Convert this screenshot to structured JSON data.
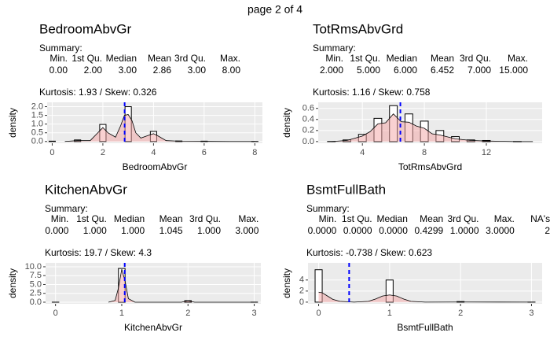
{
  "page_title": "page 2 of 4",
  "chart_data": [
    {
      "type": "histogram",
      "title": "BedroomAbvGr",
      "summary_title": "Summary:",
      "summary_labels": [
        "Min.",
        "1st Qu.",
        "Median",
        "Mean",
        "3rd Qu.",
        "Max."
      ],
      "summary_values": [
        "0.00",
        "2.00",
        "3.00",
        "2.86",
        "3.00",
        "8.00"
      ],
      "annotation": "Kurtosis: 1.93  / Skew: 0.326",
      "xlabel": "BedroomAbvGr",
      "ylabel": "density",
      "bins": [
        -0.125,
        0.125,
        0.375,
        0.625,
        0.875,
        1.125,
        1.375,
        1.625,
        1.875,
        2.125,
        2.375,
        2.625,
        2.875,
        3.125,
        3.375,
        3.625,
        3.875,
        4.125,
        4.375,
        4.625,
        4.875,
        5.125,
        5.375,
        5.625,
        5.875,
        6.125,
        6.375,
        6.625,
        6.875,
        7.125,
        7.375,
        7.625,
        7.875,
        8.125
      ],
      "values": [
        0.02,
        0,
        0,
        0,
        0.09,
        0,
        0,
        0,
        0.98,
        0,
        0,
        0,
        2.0,
        0,
        0,
        0,
        0.58,
        0,
        0,
        0,
        0.03,
        0,
        0,
        0,
        0.02,
        0,
        0,
        0,
        0,
        0,
        0,
        0,
        0.003
      ],
      "density": {
        "x": [
          0.5,
          1,
          1.5,
          1.8,
          2,
          2.2,
          2.5,
          2.7,
          2.85,
          3,
          3.15,
          3.3,
          3.5,
          3.8,
          4,
          4.2,
          4.5,
          5,
          6,
          7,
          8
        ],
        "values": [
          0,
          0.05,
          0.05,
          0.5,
          0.8,
          0.5,
          0.25,
          0.9,
          1.5,
          1.55,
          1.2,
          0.5,
          0.2,
          0.35,
          0.45,
          0.3,
          0.05,
          0.02,
          0.01,
          0,
          0
        ]
      },
      "mean": 2.86,
      "color": "#f4a3a3",
      "bar_fill": "#ffffff",
      "bar_edge": "#000000",
      "mean_color": "#0000ff",
      "xlim": [
        -0.2,
        8.3
      ],
      "xticks": [
        0,
        2,
        4,
        6,
        8
      ],
      "ylim": [
        -0.1,
        2.25
      ],
      "yticks": [
        {
          "value": 0,
          "label": "0.0"
        },
        0.5,
        {
          "value": 1,
          "label": "1.0"
        },
        1.5,
        {
          "value": 2,
          "label": "2.0"
        }
      ],
      "grid": true
    },
    {
      "type": "histogram",
      "title": "TotRmsAbvGrd",
      "summary_title": "Summary:",
      "summary_labels": [
        "Min.",
        "1st Qu.",
        "Median",
        "Mean",
        "3rd Qu.",
        "Max."
      ],
      "summary_values": [
        "2.000",
        "5.000",
        "6.000",
        "6.452",
        "7.000",
        "15.000"
      ],
      "annotation": "Kurtosis: 1.16  / Skew: 0.758",
      "xlabel": "TotRmsAbvGrd",
      "ylabel": "density",
      "bins": [
        1.75,
        2.25,
        2.75,
        3.25,
        3.75,
        4.25,
        4.75,
        5.25,
        5.75,
        6.25,
        6.75,
        7.25,
        7.75,
        8.25,
        8.75,
        9.25,
        9.75,
        10.25,
        10.75,
        11.25,
        11.75,
        12.25,
        12.75,
        13.25,
        13.75,
        14.25,
        14.75,
        15.25
      ],
      "values": [
        0.002,
        0,
        0.03,
        0,
        0.13,
        0,
        0.42,
        0,
        0.65,
        0,
        0.5,
        0,
        0.37,
        0,
        0.2,
        0,
        0.09,
        0,
        0.03,
        0,
        0.02,
        0,
        0,
        0,
        0.002,
        0,
        0
      ],
      "density": {
        "x": [
          2,
          3,
          4,
          4.5,
          5,
          5.5,
          6,
          6.5,
          7,
          7.5,
          8,
          8.5,
          9,
          10,
          11,
          12,
          14,
          15
        ],
        "values": [
          0,
          0.02,
          0.1,
          0.18,
          0.32,
          0.34,
          0.5,
          0.36,
          0.35,
          0.28,
          0.24,
          0.14,
          0.12,
          0.05,
          0.02,
          0.01,
          0,
          0
        ]
      },
      "mean": 6.452,
      "color": "#f4a3a3",
      "bar_fill": "#ffffff",
      "bar_edge": "#000000",
      "mean_color": "#0000ff",
      "xlim": [
        1.15,
        15.6
      ],
      "xticks": [
        4,
        8,
        12
      ],
      "ylim": [
        -0.03,
        0.71
      ],
      "yticks": [
        {
          "value": 0,
          "label": "0.0"
        },
        0.2,
        0.4,
        0.6
      ],
      "grid": true
    },
    {
      "type": "histogram",
      "title": "KitchenAbvGr",
      "summary_title": "Summary:",
      "summary_labels": [
        "Min.",
        "1st Qu.",
        "Median",
        "Mean",
        "3rd Qu.",
        "Max."
      ],
      "summary_values": [
        "0.000",
        "1.000",
        "1.000",
        "1.045",
        "1.000",
        "3.000"
      ],
      "annotation": "Kurtosis: 19.7  / Skew: 4.3",
      "xlabel": "KitchenAbvGr",
      "ylabel": "density",
      "bins": [
        -0.05,
        0.05,
        0.15,
        0.25,
        0.35,
        0.45,
        0.55,
        0.65,
        0.75,
        0.85,
        0.95,
        1.05,
        1.15,
        1.25,
        1.35,
        1.45,
        1.55,
        1.65,
        1.75,
        1.85,
        1.95,
        2.05,
        2.15,
        2.25,
        2.35,
        2.45,
        2.55,
        2.65,
        2.75,
        2.85,
        2.95,
        3.05
      ],
      "values": [
        0.007,
        0,
        0,
        0,
        0,
        0,
        0,
        0,
        0,
        0,
        9.53,
        0,
        0,
        0,
        0,
        0,
        0,
        0,
        0,
        0,
        0.43,
        0,
        0,
        0,
        0,
        0,
        0,
        0,
        0,
        0,
        0.014
      ],
      "density": {
        "x": [
          0.8,
          0.9,
          0.95,
          1,
          1.05,
          1.1,
          1.2,
          1.9,
          2,
          2.1,
          2.9,
          3
        ],
        "values": [
          0,
          0.5,
          4,
          9.3,
          6,
          1,
          0,
          0,
          0.4,
          0,
          0,
          0
        ]
      },
      "mean": 1.045,
      "color": "#f4a3a3",
      "bar_fill": "#ffffff",
      "bar_edge": "#000000",
      "mean_color": "#0000ff",
      "xlim": [
        -0.15,
        3.1
      ],
      "xticks": [
        0,
        1,
        2,
        3
      ],
      "ylim": [
        -0.45,
        11.1
      ],
      "yticks": [
        {
          "value": 0,
          "label": "0.0"
        },
        2.5,
        {
          "value": 5,
          "label": "5.0"
        },
        7.5,
        {
          "value": 10,
          "label": "10.0"
        }
      ],
      "grid": true
    },
    {
      "type": "histogram",
      "title": "BsmtFullBath",
      "summary_title": "Summary:",
      "summary_labels": [
        "Min.",
        "1st Qu.",
        "Median",
        "Mean",
        "3rd Qu.",
        "Max.",
        "NA's"
      ],
      "summary_values": [
        "0.0000",
        "0.0000",
        "0.0000",
        "0.4299",
        "1.0000",
        "3.0000",
        "2"
      ],
      "annotation": "Kurtosis: -0.738  / Skew: 0.623",
      "xlabel": "BsmtFullBath",
      "ylabel": "density",
      "bins": [
        -0.05,
        0.05,
        0.15,
        0.25,
        0.35,
        0.45,
        0.55,
        0.65,
        0.75,
        0.85,
        0.95,
        1.05,
        1.15,
        1.25,
        1.35,
        1.45,
        1.55,
        1.65,
        1.75,
        1.85,
        1.95,
        2.05,
        2.15,
        2.25,
        2.35,
        2.45,
        2.55,
        2.65,
        2.75,
        2.85,
        2.95,
        3.05
      ],
      "values": [
        5.86,
        0,
        0,
        0,
        0,
        0,
        0,
        0,
        0,
        0,
        4.0,
        0,
        0,
        0,
        0,
        0,
        0,
        0,
        0,
        0,
        0.1,
        0,
        0,
        0,
        0,
        0,
        0,
        0,
        0,
        0,
        0.007
      ],
      "density": {
        "x": [
          0,
          0.05,
          0.1,
          0.2,
          0.3,
          0.5,
          0.7,
          0.8,
          0.9,
          1,
          1.1,
          1.2,
          1.3,
          1.5,
          2,
          3
        ],
        "values": [
          1.8,
          1.7,
          1.3,
          0.5,
          0.15,
          0,
          0.15,
          0.55,
          1.1,
          1.3,
          1.1,
          0.55,
          0.15,
          0,
          0.02,
          0
        ]
      },
      "mean": 0.4299,
      "color": "#f4a3a3",
      "bar_fill": "#ffffff",
      "bar_edge": "#000000",
      "mean_color": "#0000ff",
      "xlim": [
        -0.15,
        3.15
      ],
      "xticks": [
        0,
        1,
        2,
        3
      ],
      "ylim": [
        -0.3,
        7.1
      ],
      "yticks": [
        0,
        2,
        4
      ],
      "grid": true
    }
  ]
}
